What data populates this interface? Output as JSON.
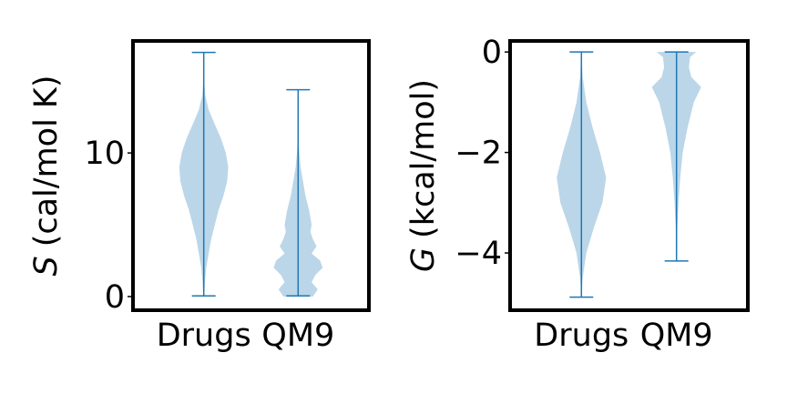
{
  "chart_data": [
    {
      "type": "violin",
      "ylabel": [
        "S",
        "(cal/mol K)"
      ],
      "categories": [
        "Drugs",
        "QM9"
      ],
      "ylim": [
        -0.95,
        17.8
      ],
      "yticks": [
        0,
        10
      ],
      "color": "#1f77b4",
      "violins": [
        {
          "min": 0.05,
          "max": 17.0,
          "density_y": [
            0,
            1,
            2,
            3,
            4,
            5,
            6,
            7,
            8,
            9,
            10,
            11,
            12,
            13,
            14,
            15,
            16,
            17
          ],
          "density": [
            0.02,
            0.05,
            0.1,
            0.2,
            0.3,
            0.45,
            0.6,
            0.8,
            0.95,
            1,
            0.9,
            0.7,
            0.45,
            0.2,
            0.06,
            0.02,
            0.01,
            0
          ]
        },
        {
          "min": 0.05,
          "max": 14.4,
          "density_y": [
            0,
            0.5,
            1,
            1.5,
            2,
            2.5,
            3,
            3.5,
            4,
            4.5,
            5,
            6,
            7,
            8,
            9,
            10,
            11,
            12,
            13,
            14.4
          ],
          "density": [
            0.6,
            0.8,
            0.55,
            0.7,
            1,
            0.9,
            0.55,
            0.75,
            0.6,
            0.5,
            0.55,
            0.45,
            0.3,
            0.2,
            0.1,
            0.05,
            0.02,
            0.01,
            0.005,
            0
          ]
        }
      ]
    },
    {
      "type": "violin",
      "ylabel": [
        "G",
        "(kcal/mol)"
      ],
      "categories": [
        "Drugs",
        "QM9"
      ],
      "ylim": [
        -5.14,
        0.22
      ],
      "yticks": [
        0,
        {
          "value": -2,
          "label": "−2"
        },
        {
          "value": -4,
          "label": "−4"
        }
      ],
      "color": "#1f77b4",
      "violins": [
        {
          "min": -4.88,
          "max": 0,
          "density_y": [
            -4.88,
            -4.5,
            -4,
            -3.5,
            -3,
            -2.5,
            -2,
            -1.5,
            -1,
            -0.5,
            0
          ],
          "density": [
            0,
            0.05,
            0.2,
            0.5,
            0.85,
            1,
            0.75,
            0.45,
            0.2,
            0.05,
            0
          ]
        },
        {
          "min": -4.16,
          "max": 0,
          "density_y": [
            -4.16,
            -4,
            -3.5,
            -3,
            -2.5,
            -2,
            -1.5,
            -1.2,
            -1,
            -0.7,
            -0.5,
            -0.3,
            -0.1,
            0
          ],
          "density": [
            0,
            0.01,
            0.03,
            0.08,
            0.15,
            0.25,
            0.45,
            0.6,
            0.7,
            1,
            0.6,
            0.5,
            0.55,
            0.8
          ]
        }
      ]
    }
  ]
}
